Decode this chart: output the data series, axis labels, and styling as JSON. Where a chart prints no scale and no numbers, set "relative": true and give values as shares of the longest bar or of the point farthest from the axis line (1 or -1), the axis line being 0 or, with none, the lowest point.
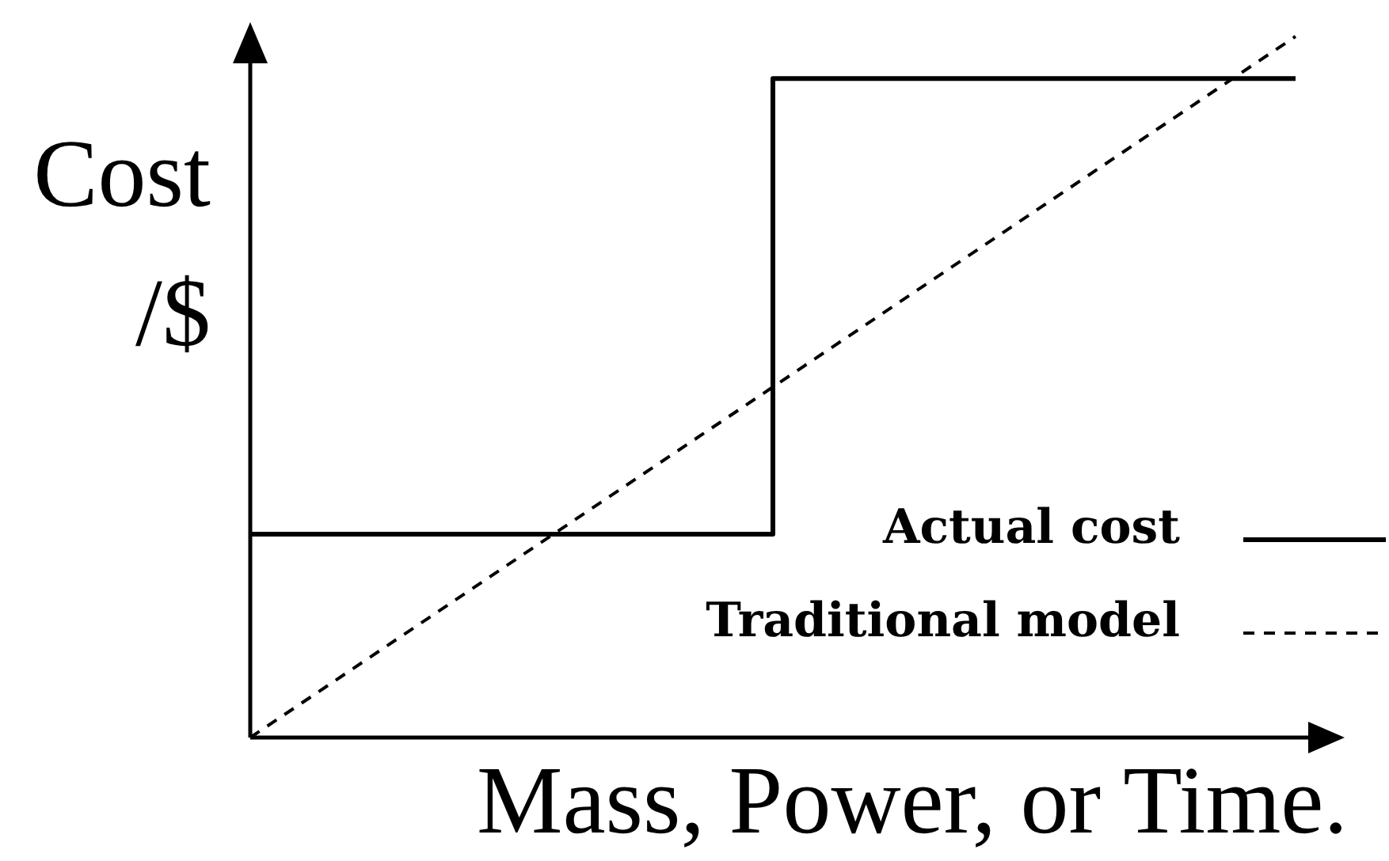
{
  "chart_data": {
    "type": "line",
    "xlabel": "Mass, Power, or Time.",
    "ylabel": "Cost /$",
    "categories": [
      null,
      null,
      null
    ],
    "relative": true,
    "legend": "bottom right",
    "series": [
      {
        "name": "Actual cost",
        "type": "step",
        "color": "#000000",
        "line_style": "solid",
        "values": [
          0.29,
          0.94,
          0.94
        ]
      },
      {
        "name": "Traditional model",
        "type": "line",
        "color": "#000000",
        "line_style": "dashed",
        "values": [
          0,
          0.5,
          1
        ]
      }
    ]
  }
}
